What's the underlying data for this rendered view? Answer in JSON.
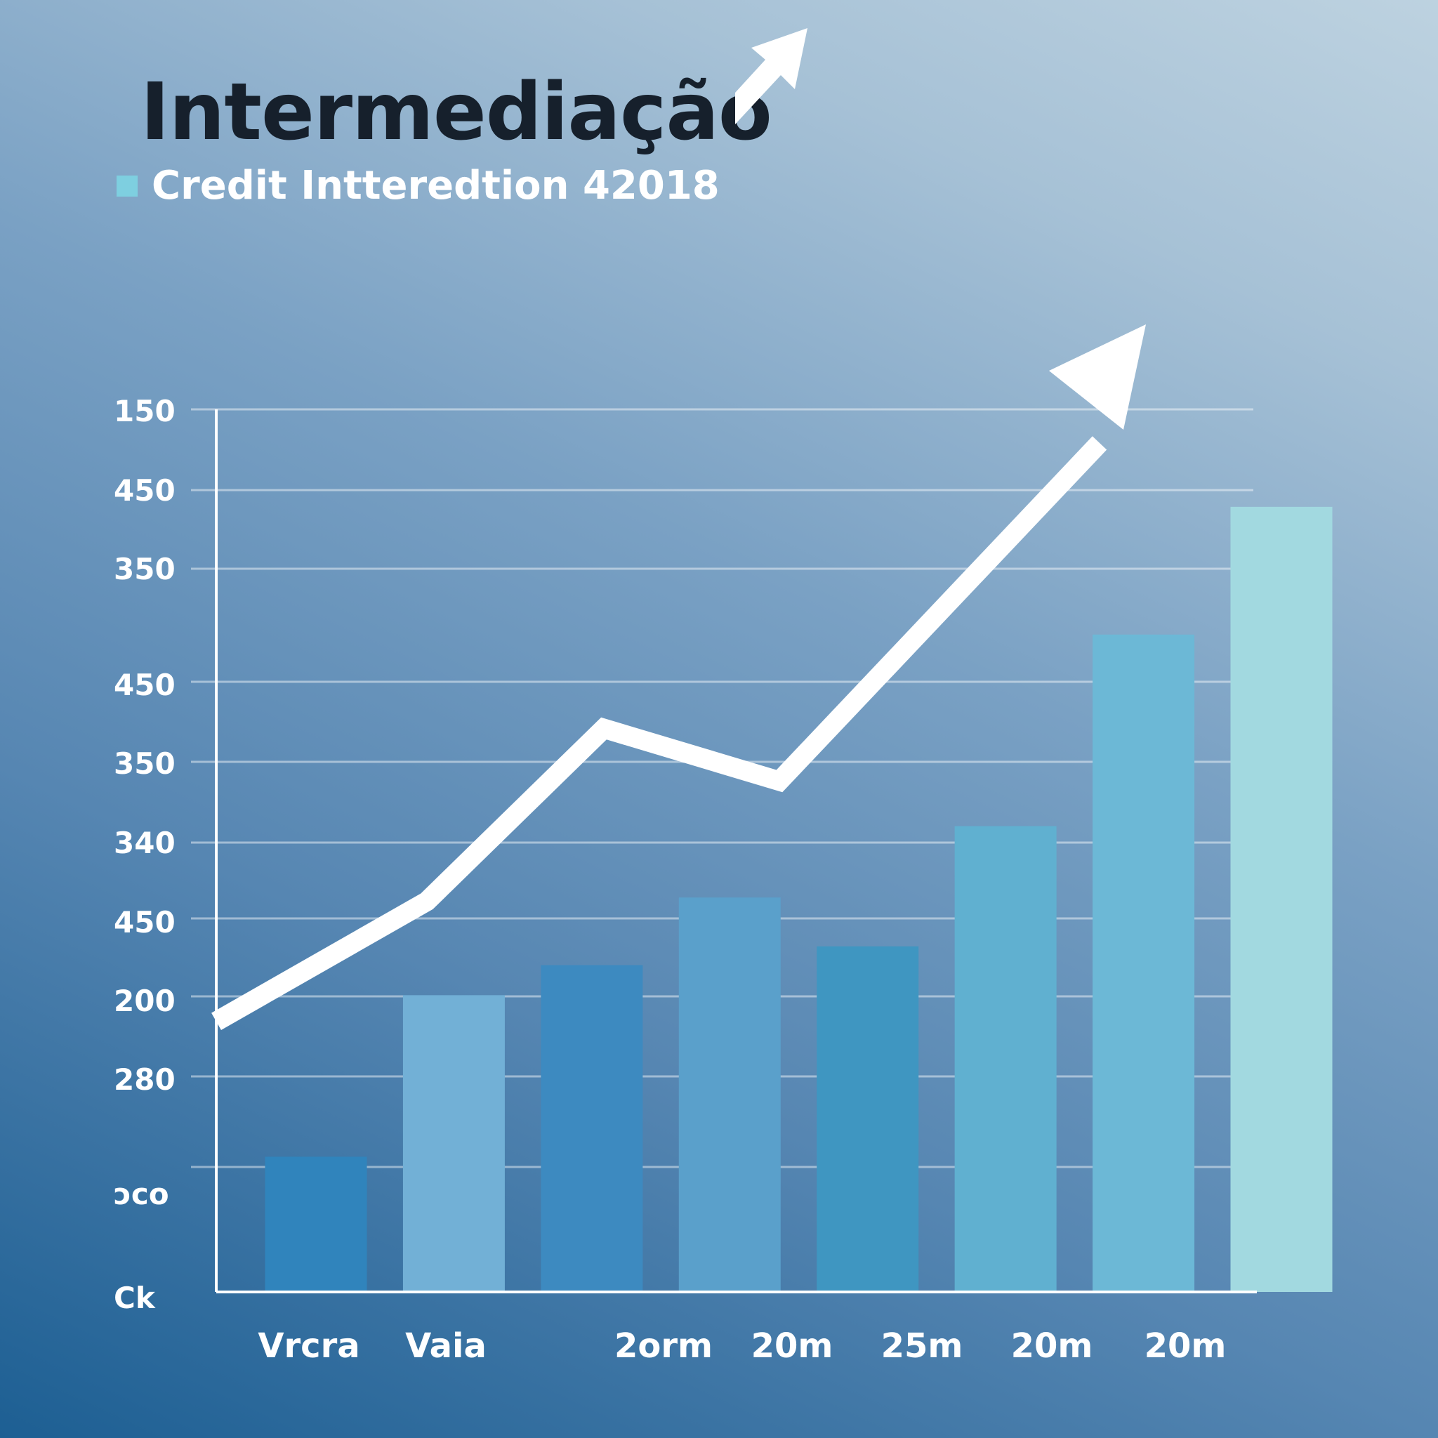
{
  "title": "Intermediação",
  "legend": {
    "label": "Credit Intteredtion 42018",
    "color": "#7ecfe0"
  },
  "decor": {
    "corner_icon": "arrow-up-right-icon"
  },
  "chart_data": {
    "type": "bar",
    "categories": [
      "Vrcra",
      "Vaia",
      "",
      "2orm",
      "20m",
      "25m",
      "20m",
      "20m"
    ],
    "ytick_labels": [
      "150",
      "450",
      "350",
      "450",
      "350",
      "340",
      "450",
      "200",
      "280",
      "ɔco",
      "Ck"
    ],
    "ylim": [
      0,
      11
    ],
    "series": [
      {
        "values": [
          1.8,
          3.95,
          4.35,
          5.25,
          4.6,
          6.2,
          8.75,
          10.45
        ],
        "colors": [
          "#3084bc",
          "#72b0d6",
          "#3d8ac0",
          "#5aa0cb",
          "#3f96c1",
          "#60b0d0",
          "#6cb8d6",
          "#a2d9e0"
        ]
      }
    ],
    "trend_line": {
      "values": [
        3.6,
        5.2,
        7.5,
        6.8,
        11.3
      ],
      "color": "#ffffff"
    },
    "grid": true,
    "legend_position": "top-left"
  }
}
